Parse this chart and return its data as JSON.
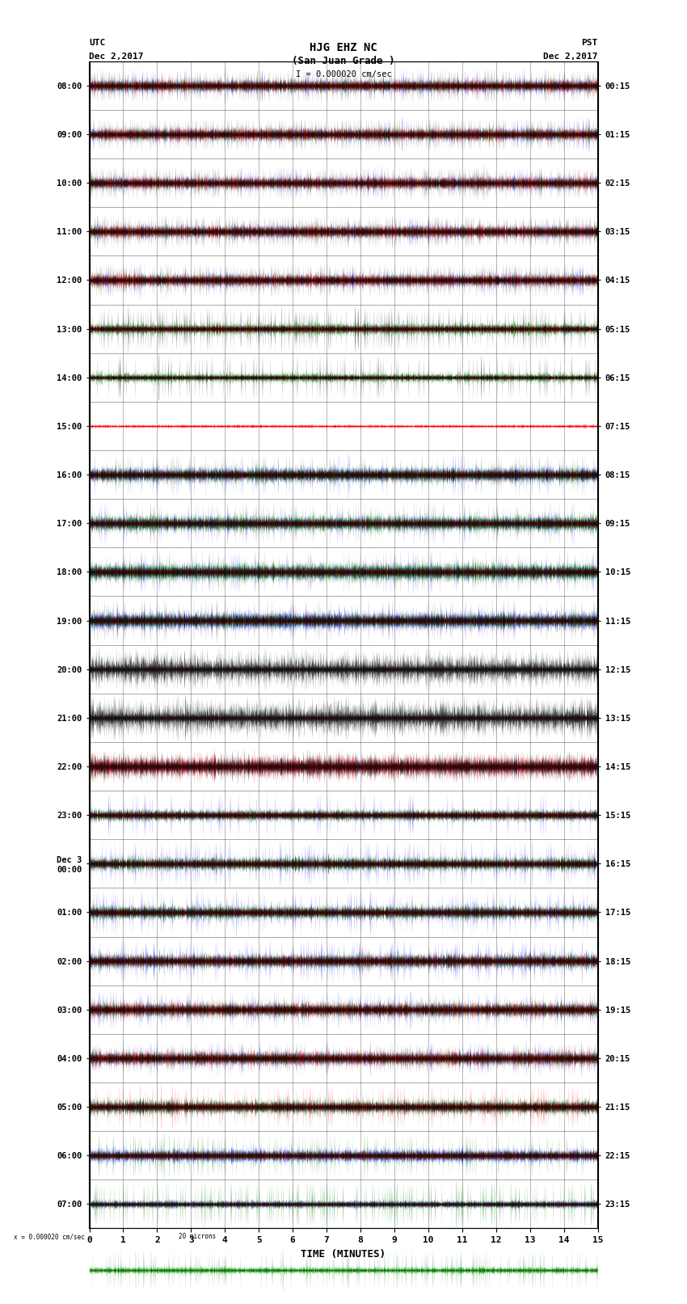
{
  "title_line1": "HJG EHZ NC",
  "title_line2": "(San Juan Grade )",
  "title_line3": "I = 0.000020 cm/sec",
  "left_header_line1": "UTC",
  "left_header_line2": "Dec 2,2017",
  "right_header_line1": "PST",
  "right_header_line2": "Dec 2,2017",
  "utc_labels": [
    "08:00",
    "09:00",
    "10:00",
    "11:00",
    "12:00",
    "13:00",
    "14:00",
    "15:00",
    "16:00",
    "17:00",
    "18:00",
    "19:00",
    "20:00",
    "21:00",
    "22:00",
    "23:00",
    "Dec 3\n00:00",
    "01:00",
    "02:00",
    "03:00",
    "04:00",
    "05:00",
    "06:00",
    "07:00"
  ],
  "pst_labels": [
    "00:15",
    "01:15",
    "02:15",
    "03:15",
    "04:15",
    "05:15",
    "06:15",
    "07:15",
    "08:15",
    "09:15",
    "10:15",
    "11:15",
    "12:15",
    "13:15",
    "14:15",
    "15:15",
    "16:15",
    "17:15",
    "18:15",
    "19:15",
    "20:15",
    "21:15",
    "22:15",
    "23:15"
  ],
  "xlabel": "TIME (MINUTES)",
  "xticks": [
    0,
    1,
    2,
    3,
    4,
    5,
    6,
    7,
    8,
    9,
    10,
    11,
    12,
    13,
    14,
    15
  ],
  "n_rows": 24,
  "minutes_per_row": 15,
  "background_color": "#ffffff",
  "seismo_colors": [
    "blue",
    "green",
    "red",
    "black"
  ],
  "row_weights": [
    [
      0.3,
      0.3,
      0.25,
      0.15
    ],
    [
      0.3,
      0.3,
      0.25,
      0.15
    ],
    [
      0.3,
      0.3,
      0.25,
      0.15
    ],
    [
      0.3,
      0.3,
      0.25,
      0.15
    ],
    [
      0.3,
      0.3,
      0.25,
      0.15
    ],
    [
      0.1,
      0.3,
      0.1,
      0.6
    ],
    [
      0.05,
      0.15,
      0.05,
      0.75
    ],
    "red_band",
    [
      0.4,
      0.3,
      0.1,
      0.2
    ],
    [
      0.4,
      0.3,
      0.1,
      0.2
    ],
    [
      0.4,
      0.3,
      0.1,
      0.2
    ],
    [
      0.3,
      0.2,
      0.1,
      0.4
    ],
    [
      0.1,
      0.1,
      0.05,
      0.5
    ],
    [
      0.1,
      0.1,
      0.05,
      0.5
    ],
    [
      0.15,
      0.1,
      0.3,
      0.3
    ],
    [
      0.6,
      0.15,
      0.1,
      0.15
    ],
    [
      0.5,
      0.2,
      0.1,
      0.2
    ],
    [
      0.45,
      0.25,
      0.1,
      0.2
    ],
    [
      0.4,
      0.2,
      0.15,
      0.25
    ],
    [
      0.35,
      0.2,
      0.2,
      0.25
    ],
    [
      0.3,
      0.2,
      0.25,
      0.25
    ],
    [
      0.1,
      0.2,
      0.5,
      0.2
    ],
    [
      0.2,
      0.55,
      0.1,
      0.15
    ],
    [
      0.1,
      0.75,
      0.05,
      0.1
    ]
  ],
  "row_noise": [
    0.38,
    0.38,
    0.38,
    0.38,
    0.38,
    0.35,
    0.4,
    0.08,
    0.28,
    0.28,
    0.25,
    0.22,
    0.08,
    0.06,
    0.12,
    0.18,
    0.32,
    0.35,
    0.38,
    0.36,
    0.35,
    0.3,
    0.3,
    0.3
  ],
  "row_spike": [
    0.06,
    0.06,
    0.06,
    0.06,
    0.06,
    0.03,
    0.02,
    0.003,
    0.025,
    0.025,
    0.02,
    0.018,
    0.003,
    0.002,
    0.01,
    0.015,
    0.04,
    0.04,
    0.04,
    0.04,
    0.04,
    0.035,
    0.035,
    0.035
  ]
}
